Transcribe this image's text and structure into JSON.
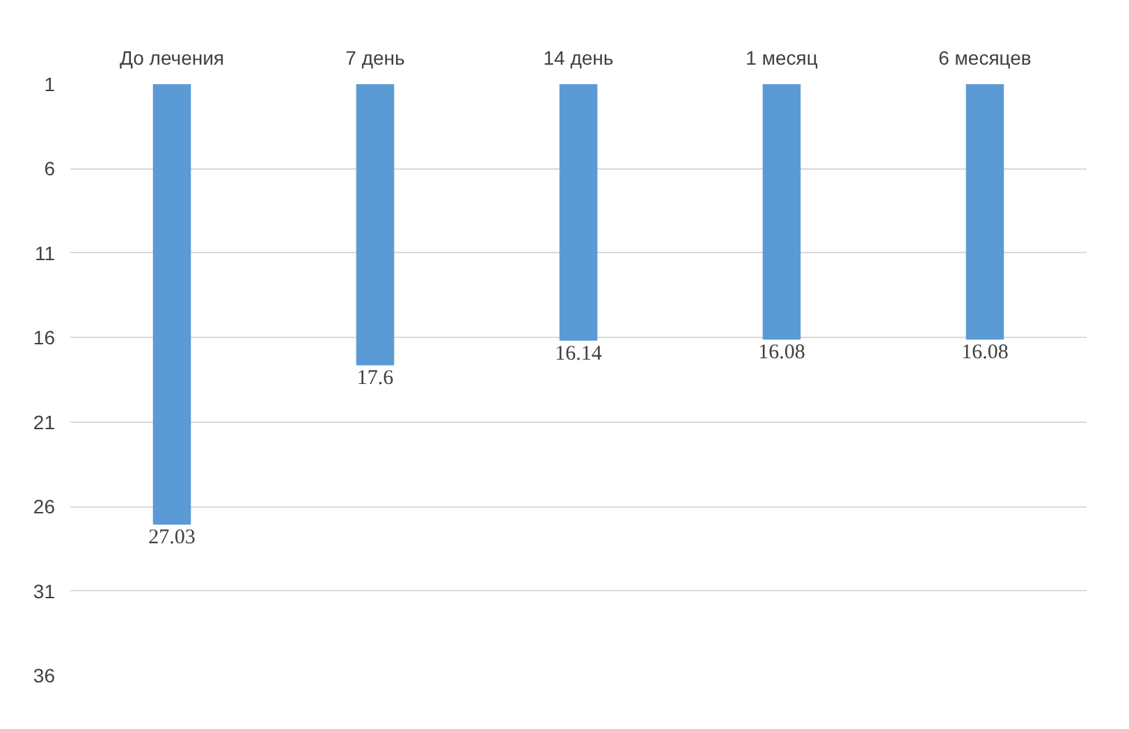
{
  "chart_data": {
    "type": "bar",
    "categories": [
      "До лечения",
      "7 день",
      "14 день",
      "1 месяц",
      "6 месяцев"
    ],
    "values": [
      27.03,
      17.6,
      16.14,
      16.08,
      16.08
    ],
    "color": "#5b9bd5",
    "ylim": [
      36,
      1
    ],
    "yticks": [
      1,
      6,
      11,
      16,
      21,
      26,
      31,
      36
    ],
    "grid": "y",
    "data_labels": true
  }
}
